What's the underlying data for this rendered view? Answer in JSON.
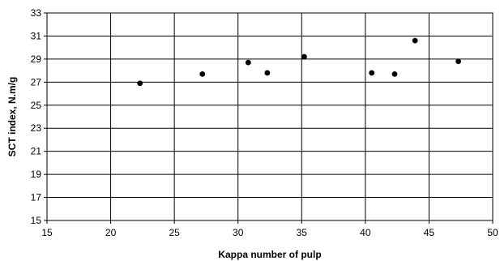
{
  "chart_data": {
    "type": "scatter",
    "title": "",
    "xlabel": "Kappa number of pulp",
    "ylabel": "SCT index, N.m/g",
    "xlim": [
      15,
      50
    ],
    "ylim": [
      15,
      33
    ],
    "x_ticks": [
      15,
      20,
      25,
      30,
      35,
      40,
      45,
      50
    ],
    "y_ticks": [
      15,
      17,
      19,
      21,
      23,
      25,
      27,
      29,
      31,
      33
    ],
    "grid": true,
    "legend": "none",
    "marker_color": "#000000",
    "points": [
      {
        "x": 22.3,
        "y": 26.9
      },
      {
        "x": 27.2,
        "y": 27.7
      },
      {
        "x": 30.8,
        "y": 28.7
      },
      {
        "x": 32.3,
        "y": 27.8
      },
      {
        "x": 35.2,
        "y": 29.2
      },
      {
        "x": 40.5,
        "y": 27.8
      },
      {
        "x": 42.3,
        "y": 27.7
      },
      {
        "x": 43.9,
        "y": 30.6
      },
      {
        "x": 47.3,
        "y": 28.8
      }
    ]
  }
}
